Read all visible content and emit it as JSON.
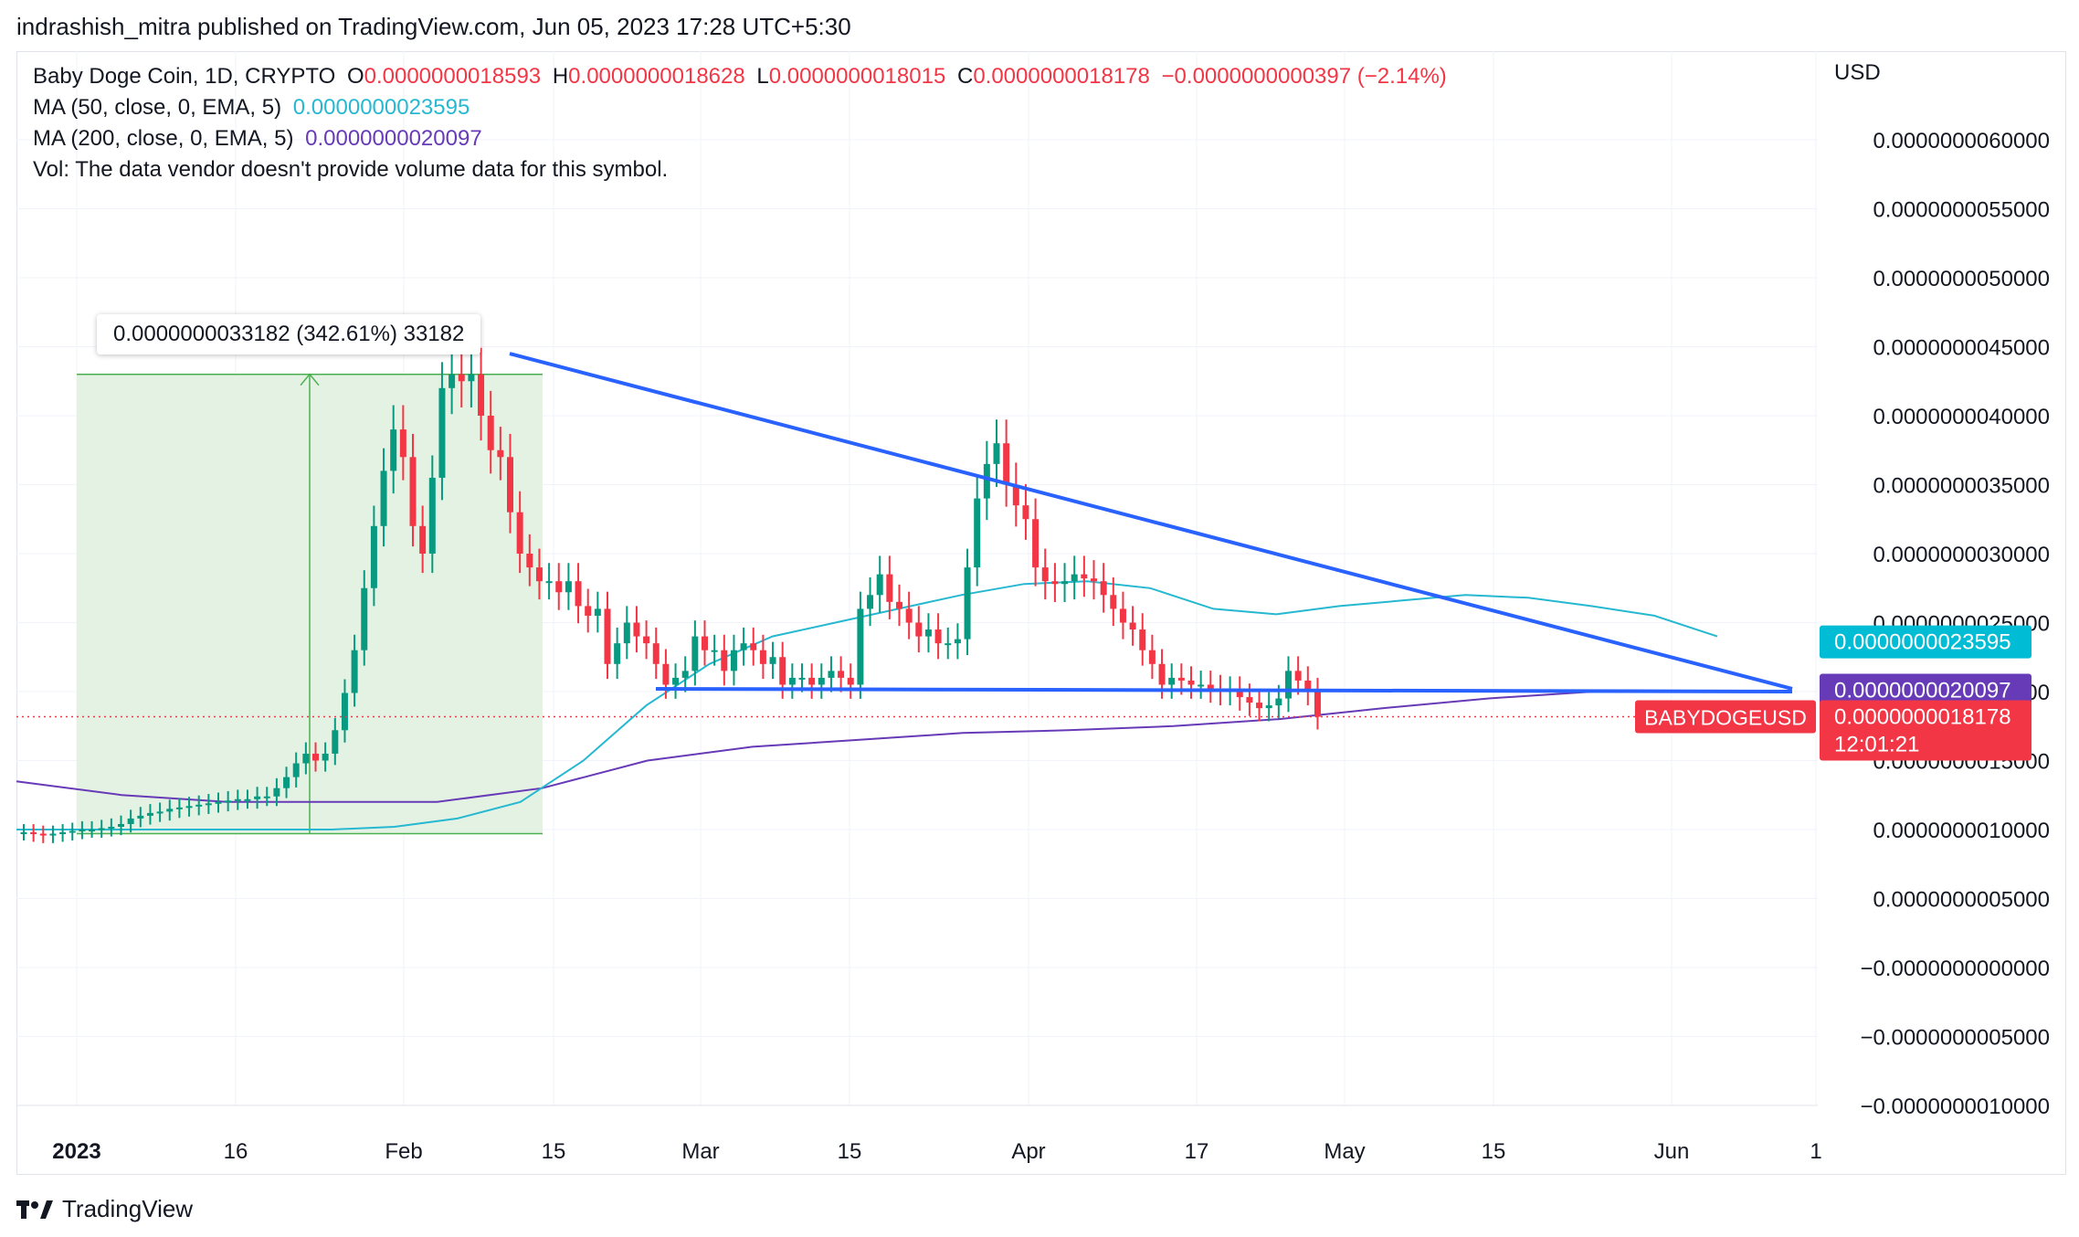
{
  "header": {
    "publisher": "indrashish_mitra published on TradingView.com, Jun 05, 2023 17:28 UTC+5:30"
  },
  "legend": {
    "symbol": "Baby Doge Coin, 1D, CRYPTO",
    "o_label": "O",
    "o_value": "0.0000000018593",
    "h_label": "H",
    "h_value": "0.0000000018628",
    "l_label": "L",
    "l_value": "0.0000000018015",
    "c_label": "C",
    "c_value": "0.0000000018178",
    "change": "−0.0000000000397 (−2.14%)",
    "ma50_label": "MA (50, close, 0, EMA, 5)",
    "ma50_value": "0.0000000023595",
    "ma200_label": "MA (200, close, 0, EMA, 5)",
    "ma200_value": "0.0000000020097",
    "vol_text": "Vol: The data vendor doesn't provide volume data for this symbol."
  },
  "axis": {
    "currency": "USD"
  },
  "measure": {
    "text": "0.0000000033182 (342.61%) 33182"
  },
  "price_tags": {
    "ma50": "0.0000000023595",
    "ma200": "0.0000000020097",
    "last": "0.0000000018178",
    "countdown": "12:01:21",
    "symbol": "BABYDOGEUSD"
  },
  "footer": {
    "brand": "TradingView"
  },
  "colors": {
    "up": "#089981",
    "down": "#f23645",
    "ma50": "#26b8d1",
    "ma200": "#673ab7",
    "trendline": "#2962ff",
    "measure_fill": "#e4f2e4",
    "measure_line": "#4caf50"
  },
  "chart_data": {
    "type": "candlestick",
    "title": "Baby Doge Coin, 1D, CRYPTO",
    "ylabel": "USD",
    "ylim": [
      -1.2e-09,
      6.4e-09
    ],
    "x_ticks": [
      "2023",
      "16",
      "Feb",
      "15",
      "Mar",
      "15",
      "Apr",
      "17",
      "May",
      "15",
      "Jun",
      "1"
    ],
    "y_ticks": [
      "0.0000000060000",
      "0.0000000055000",
      "0.0000000050000",
      "0.0000000045000",
      "0.0000000040000",
      "0.0000000035000",
      "0.0000000030000",
      "0.0000000025000",
      "0.0000000020000",
      "0.0000000015000",
      "0.0000000010000",
      "0.0000000005000",
      "−0.0000000000000",
      "−0.0000000005000",
      "−0.0000000010000"
    ],
    "y_tick_values": [
      6e-09,
      5.5e-09,
      5e-09,
      4.5e-09,
      4e-09,
      3.5e-09,
      3e-09,
      2.5e-09,
      2e-09,
      1.5e-09,
      1e-09,
      5e-10,
      0,
      -5e-10,
      -1e-09
    ],
    "candles_close": [
      0.98,
      0.97,
      0.96,
      0.97,
      0.98,
      0.99,
      1.0,
      1.0,
      1.01,
      1.02,
      1.04,
      1.08,
      1.1,
      1.12,
      1.13,
      1.15,
      1.16,
      1.17,
      1.18,
      1.19,
      1.2,
      1.21,
      1.22,
      1.22,
      1.24,
      1.24,
      1.3,
      1.38,
      1.48,
      1.55,
      1.5,
      1.55,
      1.72,
      1.99,
      2.3,
      2.75,
      3.2,
      3.6,
      3.9,
      3.7,
      3.2,
      3.0,
      3.55,
      4.2,
      4.3,
      4.25,
      4.3,
      4.0,
      3.75,
      3.7,
      3.3,
      3.0,
      2.9,
      2.8,
      2.8,
      2.72,
      2.8,
      2.62,
      2.55,
      2.6,
      2.2,
      2.35,
      2.5,
      2.4,
      2.35,
      2.2,
      2.05,
      2.1,
      2.15,
      2.4,
      2.3,
      2.3,
      2.15,
      2.3,
      2.35,
      2.3,
      2.2,
      2.25,
      2.05,
      2.1,
      2.1,
      2.05,
      2.1,
      2.15,
      2.1,
      2.05,
      2.6,
      2.7,
      2.85,
      2.65,
      2.6,
      2.5,
      2.4,
      2.45,
      2.35,
      2.35,
      2.38,
      2.9,
      3.4,
      3.65,
      3.8,
      3.5,
      3.35,
      3.25,
      2.9,
      2.8,
      2.78,
      2.8,
      2.85,
      2.82,
      2.8,
      2.7,
      2.6,
      2.5,
      2.45,
      2.3,
      2.2,
      2.05,
      2.1,
      2.08,
      2.05,
      2.05,
      2.02,
      2.0,
      2.01,
      1.96,
      1.92,
      1.88,
      1.9,
      1.95,
      2.15,
      2.08,
      2.0,
      1.8178
    ],
    "ma50": [
      1.0,
      1.0,
      1.0,
      1.0,
      1.0,
      1.0,
      1.02,
      1.08,
      1.2,
      1.5,
      1.9,
      2.2,
      2.4,
      2.5,
      2.6,
      2.7,
      2.78,
      2.8,
      2.75,
      2.6,
      2.56,
      2.62,
      2.66,
      2.7,
      2.68,
      2.62,
      2.55,
      2.4
    ],
    "ma200": [
      1.35,
      1.25,
      1.2,
      1.2,
      1.2,
      1.3,
      1.5,
      1.6,
      1.65,
      1.7,
      1.72,
      1.75,
      1.8,
      1.88,
      1.95,
      2.0,
      2.0
    ]
  }
}
